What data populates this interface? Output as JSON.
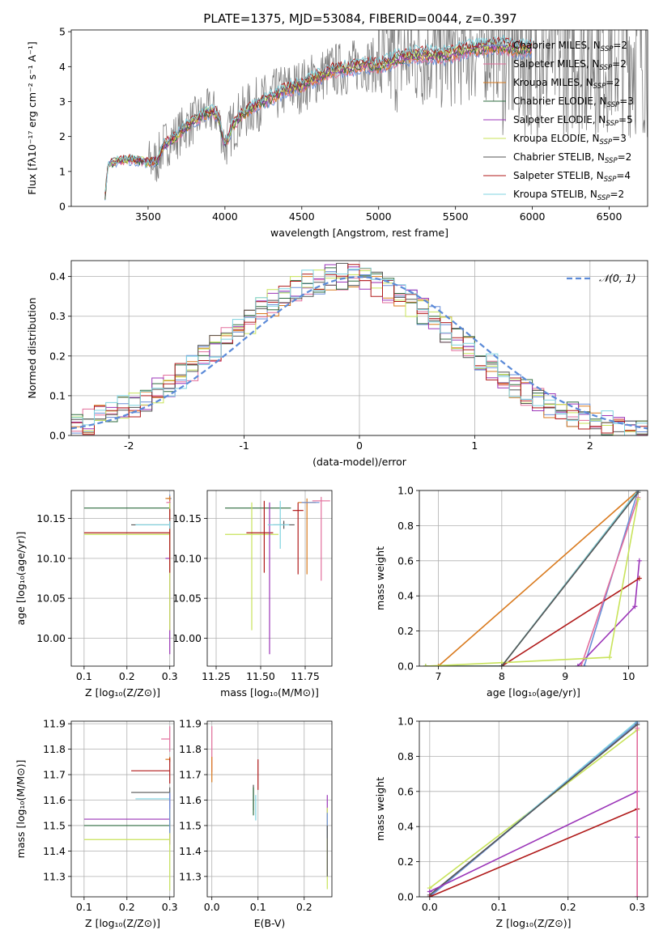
{
  "figure_title": "PLATE=1375, MJD=53084, FIBERID=0044, z=0.397",
  "legend_models": [
    {
      "text": "Chabrier MILES, N",
      "sub": "SSP",
      "tail": "=2",
      "color": "#6a8fd8"
    },
    {
      "text": "Salpeter MILES, N",
      "sub": "SSP",
      "tail": "=2",
      "color": "#e36e9c"
    },
    {
      "text": "Kroupa MILES, N",
      "sub": "SSP",
      "tail": "=2",
      "color": "#d97a1e"
    },
    {
      "text": "Chabrier ELODIE, N",
      "sub": "SSP",
      "tail": "=3",
      "color": "#2e6b3f"
    },
    {
      "text": "Salpeter ELODIE, N",
      "sub": "SSP",
      "tail": "=5",
      "color": "#9b35b8"
    },
    {
      "text": "Kroupa ELODIE, N",
      "sub": "SSP",
      "tail": "=3",
      "color": "#c8e35a"
    },
    {
      "text": "Chabrier STELIB, N",
      "sub": "SSP",
      "tail": "=2",
      "color": "#555555"
    },
    {
      "text": "Salpeter STELIB, N",
      "sub": "SSP",
      "tail": "=4",
      "color": "#b01a1a"
    },
    {
      "text": "Kroupa STELIB, N",
      "sub": "SSP",
      "tail": "=2",
      "color": "#7fd3e0"
    }
  ],
  "gauss_label": "𝒩(0, 1)",
  "chart_data": [
    {
      "id": "spectrum",
      "type": "line",
      "title": "PLATE=1375, MJD=53084, FIBERID=0044, z=0.397",
      "xlabel": "wavelength [Angstrom, rest frame]",
      "ylabel": "Flux [fλ10⁻¹⁷ erg cm⁻² s⁻¹ A⁻¹]",
      "xlim": [
        3000,
        6750
      ],
      "ylim": [
        0,
        5.05
      ],
      "xticks": [
        3500,
        4000,
        4500,
        5000,
        5500,
        6000,
        6500
      ],
      "yticks": [
        0,
        1,
        2,
        3,
        4,
        5
      ],
      "model_curve": {
        "x": [
          3220,
          3240,
          3300,
          3400,
          3500,
          3560,
          3600,
          3680,
          3750,
          3850,
          3900,
          3950,
          4000,
          4050,
          4100,
          4200,
          4300,
          4400,
          4500,
          4600,
          4700,
          4800,
          4900,
          5000,
          5100,
          5200,
          5300,
          5400,
          5500,
          5600,
          5700,
          5800,
          5900,
          6000
        ],
        "y": [
          0.3,
          1.2,
          1.3,
          1.35,
          1.25,
          1.3,
          1.75,
          2.0,
          2.3,
          2.6,
          2.7,
          2.65,
          1.75,
          2.3,
          2.6,
          2.9,
          3.1,
          3.35,
          3.45,
          3.7,
          3.9,
          3.95,
          4.1,
          4.0,
          4.2,
          4.3,
          4.35,
          4.3,
          4.4,
          4.5,
          4.55,
          4.6,
          4.5,
          4.55
        ]
      },
      "data_extent": {
        "x": [
          3220,
          6750
        ]
      }
    },
    {
      "id": "residuals",
      "type": "step",
      "xlabel": "(data-model)/error",
      "ylabel": "Normed distribution",
      "xlim": [
        -2.5,
        2.5
      ],
      "ylim": [
        0,
        0.44
      ],
      "xticks": [
        -2,
        -1,
        0,
        1,
        2
      ],
      "yticks": [
        0.0,
        0.1,
        0.2,
        0.3,
        0.4
      ],
      "legend": "𝒩(0, 1)"
    },
    {
      "id": "age_vs_Z",
      "type": "errorbar",
      "xlabel": "Z [log₁₀(Z/Z⊙)]",
      "ylabel": "age  [log₁₀(age/yr)]",
      "xlim": [
        0.07,
        0.31
      ],
      "ylim": [
        9.965,
        10.185
      ],
      "xticks": [
        0.1,
        0.2,
        0.3
      ],
      "yticks": [
        10.0,
        10.05,
        10.1,
        10.15
      ],
      "points": [
        {
          "x": 0.3,
          "y": 10.175,
          "xerr": [
            0.006,
            0.004
          ],
          "yerr": [
            0.005,
            0.005
          ],
          "color": "#6a8fd8"
        },
        {
          "x": 0.3,
          "y": 10.17,
          "xerr": [
            0.008,
            0.002
          ],
          "yerr": [
            0.005,
            0.005
          ],
          "color": "#e36e9c"
        },
        {
          "x": 0.3,
          "y": 10.175,
          "xerr": [
            0.01,
            0.002
          ],
          "yerr": [
            0.003,
            0.003
          ],
          "color": "#d97a1e"
        },
        {
          "x": 0.3,
          "y": 10.163,
          "xerr": [
            0.2,
            0.0
          ],
          "yerr": [
            0.005,
            0.005
          ],
          "color": "#2e6b3f"
        },
        {
          "x": 0.3,
          "y": 10.1,
          "xerr": [
            0.01,
            0.0
          ],
          "yerr": [
            0.12,
            0.07
          ],
          "color": "#9b35b8"
        },
        {
          "x": 0.3,
          "y": 10.13,
          "xerr": [
            0.2,
            0.0
          ],
          "yerr": [
            0.12,
            0.04
          ],
          "color": "#c8e35a"
        },
        {
          "x": 0.3,
          "y": 10.142,
          "xerr": [
            0.09,
            0.0
          ],
          "yerr": [
            0.005,
            0.005
          ],
          "color": "#555555"
        },
        {
          "x": 0.3,
          "y": 10.132,
          "xerr": [
            0.2,
            0.0
          ],
          "yerr": [
            0.05,
            0.03
          ],
          "color": "#b01a1a"
        },
        {
          "x": 0.3,
          "y": 10.142,
          "xerr": [
            0.08,
            0.0
          ],
          "yerr": [
            0.005,
            0.005
          ],
          "color": "#7fd3e0"
        }
      ]
    },
    {
      "id": "age_vs_mass",
      "type": "errorbar",
      "xlabel": "mass [log₁₀(M/M⊙)]",
      "ylabel": "",
      "xlim": [
        11.2,
        11.9
      ],
      "ylim": [
        9.965,
        10.185
      ],
      "xticks": [
        11.25,
        11.5,
        11.75
      ],
      "yticks": [
        10.0,
        10.05,
        10.1,
        10.15
      ],
      "points": [
        {
          "x": 11.52,
          "y": 10.163,
          "xerr": [
            0.22,
            0.15
          ],
          "yerr": [
            0.0,
            0.0
          ],
          "color": "#2e6b3f"
        },
        {
          "x": 11.45,
          "y": 10.13,
          "xerr": [
            0.15,
            0.15
          ],
          "yerr": [
            0.12,
            0.04
          ],
          "color": "#c8e35a"
        },
        {
          "x": 11.52,
          "y": 10.132,
          "xerr": [
            0.1,
            0.05
          ],
          "yerr": [
            0.05,
            0.04
          ],
          "color": "#b01a1a"
        },
        {
          "x": 11.55,
          "y": 10.1,
          "xerr": [
            0.0,
            0.0
          ],
          "yerr": [
            0.12,
            0.07
          ],
          "color": "#9b35b8"
        },
        {
          "x": 11.63,
          "y": 10.142,
          "xerr": [
            0.06,
            0.06
          ],
          "yerr": [
            0.005,
            0.005
          ],
          "color": "#555555"
        },
        {
          "x": 11.61,
          "y": 10.142,
          "xerr": [
            0.07,
            0.05
          ],
          "yerr": [
            0.03,
            0.03
          ],
          "color": "#7fd3e0"
        },
        {
          "x": 11.71,
          "y": 10.16,
          "xerr": [
            0.03,
            0.03
          ],
          "yerr": [
            0.08,
            0.01
          ],
          "color": "#b01a1a"
        },
        {
          "x": 11.76,
          "y": 10.17,
          "xerr": [
            0.05,
            0.05
          ],
          "yerr": [
            0.09,
            0.005
          ],
          "color": "#d97a1e"
        },
        {
          "x": 11.84,
          "y": 10.172,
          "xerr": [
            0.05,
            0.05
          ],
          "yerr": [
            0.1,
            0.005
          ],
          "color": "#e36e9c"
        },
        {
          "x": 11.78,
          "y": 10.17,
          "xerr": [
            0.05,
            0.05
          ],
          "yerr": [
            0.0,
            0.0
          ],
          "color": "#6a8fd8"
        }
      ]
    },
    {
      "id": "massweight_vs_age",
      "type": "line",
      "xlabel": "age  [log₁₀(age/yr)]",
      "ylabel": "mass weight",
      "xlim": [
        6.7,
        10.3
      ],
      "ylim": [
        0,
        1
      ],
      "xticks": [
        7,
        8,
        9,
        10
      ],
      "yticks": [
        0.0,
        0.2,
        0.4,
        0.6,
        0.8,
        1.0
      ],
      "series": [
        {
          "color": "#d97a1e",
          "x": [
            7.0,
            10.15
          ],
          "y": [
            0.0,
            1.0
          ]
        },
        {
          "color": "#2e6b3f",
          "x": [
            6.8,
            8.0,
            10.15
          ],
          "y": [
            0.0,
            0.0,
            1.0
          ]
        },
        {
          "color": "#7fd3e0",
          "x": [
            8.0,
            10.15
          ],
          "y": [
            0.0,
            1.0
          ]
        },
        {
          "color": "#6a8fd8",
          "x": [
            9.3,
            10.15
          ],
          "y": [
            0.0,
            1.0
          ]
        },
        {
          "color": "#9b35b8",
          "x": [
            9.2,
            10.1,
            10.17
          ],
          "y": [
            0.0,
            0.34,
            0.6
          ]
        },
        {
          "color": "#b01a1a",
          "x": [
            8.0,
            10.17
          ],
          "y": [
            0.0,
            0.5
          ]
        },
        {
          "color": "#e36e9c",
          "x": [
            9.25,
            10.15
          ],
          "y": [
            0.0,
            0.96
          ]
        },
        {
          "color": "#c8e35a",
          "x": [
            6.8,
            8.0,
            9.7,
            10.15
          ],
          "y": [
            0.0,
            0.02,
            0.05,
            0.95
          ]
        },
        {
          "color": "#555555",
          "x": [
            8.0,
            10.15
          ],
          "y": [
            0.0,
            0.99
          ]
        }
      ]
    },
    {
      "id": "mass_vs_Z",
      "type": "errorbar",
      "xlabel": "Z [log₁₀(Z/Z⊙)]",
      "ylabel": "mass [log₁₀(M/M⊙)]",
      "xlim": [
        0.07,
        0.31
      ],
      "ylim": [
        11.22,
        11.91
      ],
      "xticks": [
        0.1,
        0.2,
        0.3
      ],
      "yticks": [
        11.3,
        11.4,
        11.5,
        11.6,
        11.7,
        11.8,
        11.9
      ],
      "points": [
        {
          "x": 0.3,
          "y": 11.84,
          "xerr": [
            0.02,
            0.0
          ],
          "yerr": [
            0.05,
            0.05
          ],
          "color": "#e36e9c"
        },
        {
          "x": 0.3,
          "y": 11.76,
          "xerr": [
            0.01,
            0.0
          ],
          "yerr": [
            0.01,
            0.01
          ],
          "color": "#d97a1e"
        },
        {
          "x": 0.3,
          "y": 11.715,
          "xerr": [
            0.09,
            0.0
          ],
          "yerr": [
            0.05,
            0.05
          ],
          "color": "#b01a1a"
        },
        {
          "x": 0.3,
          "y": 11.63,
          "xerr": [
            0.09,
            0.0
          ],
          "yerr": [
            0.02,
            0.02
          ],
          "color": "#555555"
        },
        {
          "x": 0.3,
          "y": 11.605,
          "xerr": [
            0.08,
            0.0
          ],
          "yerr": [
            0.02,
            0.02
          ],
          "color": "#7fd3e0"
        },
        {
          "x": 0.3,
          "y": 11.525,
          "xerr": [
            0.2,
            0.0
          ],
          "yerr": [
            0.1,
            0.1
          ],
          "color": "#9b35b8"
        },
        {
          "x": 0.3,
          "y": 11.5,
          "xerr": [
            0.2,
            0.0
          ],
          "yerr": [
            0.02,
            0.02
          ],
          "color": "#2e6b3f"
        },
        {
          "x": 0.3,
          "y": 11.445,
          "xerr": [
            0.2,
            0.0
          ],
          "yerr": [
            0.2,
            0.12
          ],
          "color": "#c8e35a"
        },
        {
          "x": 0.3,
          "y": 11.55,
          "xerr": [
            0.0,
            0.0
          ],
          "yerr": [
            0.08,
            0.08
          ],
          "color": "#6a8fd8"
        }
      ]
    },
    {
      "id": "mass_vs_ebv",
      "type": "errorbar",
      "xlabel": "E(B-V)",
      "ylabel": "",
      "xlim": [
        -0.01,
        0.26
      ],
      "ylim": [
        11.22,
        11.91
      ],
      "xticks": [
        0.0,
        0.1,
        0.2
      ],
      "yticks": [
        11.3,
        11.4,
        11.5,
        11.6,
        11.7,
        11.8,
        11.9
      ],
      "points": [
        {
          "x": 0.0,
          "y": 11.8,
          "xerr": [
            0,
            0
          ],
          "yerr": [
            0.09,
            0.09
          ],
          "color": "#e36e9c"
        },
        {
          "x": 0.0,
          "y": 11.72,
          "xerr": [
            0,
            0
          ],
          "yerr": [
            0.05,
            0.05
          ],
          "color": "#d97a1e"
        },
        {
          "x": 0.1,
          "y": 11.7,
          "xerr": [
            0,
            0
          ],
          "yerr": [
            0.06,
            0.06
          ],
          "color": "#b01a1a"
        },
        {
          "x": 0.09,
          "y": 11.61,
          "xerr": [
            0,
            0
          ],
          "yerr": [
            0.05,
            0.05
          ],
          "color": "#555555"
        },
        {
          "x": 0.095,
          "y": 11.57,
          "xerr": [
            0,
            0
          ],
          "yerr": [
            0.05,
            0.05
          ],
          "color": "#7fd3e0"
        },
        {
          "x": 0.09,
          "y": 11.6,
          "xerr": [
            0,
            0
          ],
          "yerr": [
            0.06,
            0.05
          ],
          "color": "#2e6b3f"
        },
        {
          "x": 0.25,
          "y": 11.55,
          "xerr": [
            0,
            0
          ],
          "yerr": [
            0.07,
            0.07
          ],
          "color": "#9b35b8"
        },
        {
          "x": 0.25,
          "y": 11.45,
          "xerr": [
            0,
            0
          ],
          "yerr": [
            0.2,
            0.12
          ],
          "color": "#c8e35a"
        },
        {
          "x": 0.25,
          "y": 11.5,
          "xerr": [
            0,
            0
          ],
          "yerr": [
            0.05,
            0.05
          ],
          "color": "#6a8fd8"
        },
        {
          "x": 0.25,
          "y": 11.4,
          "xerr": [
            0,
            0
          ],
          "yerr": [
            0.1,
            0.1
          ],
          "color": "#555555"
        }
      ]
    },
    {
      "id": "massweight_vs_Z",
      "type": "line",
      "xlabel": "Z [log₁₀(Z/Z⊙)]",
      "ylabel": "mass weight",
      "xlim": [
        -0.015,
        0.315
      ],
      "ylim": [
        0,
        1
      ],
      "xticks": [
        0.0,
        0.1,
        0.2,
        0.3
      ],
      "yticks": [
        0.0,
        0.2,
        0.4,
        0.6,
        0.8,
        1.0
      ],
      "series": [
        {
          "color": "#c8e35a",
          "x": [
            0.0,
            0.3
          ],
          "y": [
            0.05,
            0.95
          ]
        },
        {
          "color": "#7fd3e0",
          "x": [
            0.0,
            0.3
          ],
          "y": [
            0.0,
            1.0
          ]
        },
        {
          "color": "#6a8fd8",
          "x": [
            0.0,
            0.3
          ],
          "y": [
            0.0,
            0.99
          ]
        },
        {
          "color": "#555555",
          "x": [
            0.0,
            0.3
          ],
          "y": [
            0.01,
            0.98
          ]
        },
        {
          "color": "#9b35b8",
          "x": [
            0.0,
            0.3,
            0.3,
            0.3
          ],
          "y": [
            0.03,
            0.6,
            0.34,
            0.0
          ]
        },
        {
          "color": "#b01a1a",
          "x": [
            0.0,
            0.3
          ],
          "y": [
            0.0,
            0.5
          ]
        },
        {
          "color": "#e36e9c",
          "x": [
            0.3,
            0.3
          ],
          "y": [
            0.0,
            0.96
          ]
        }
      ]
    }
  ]
}
